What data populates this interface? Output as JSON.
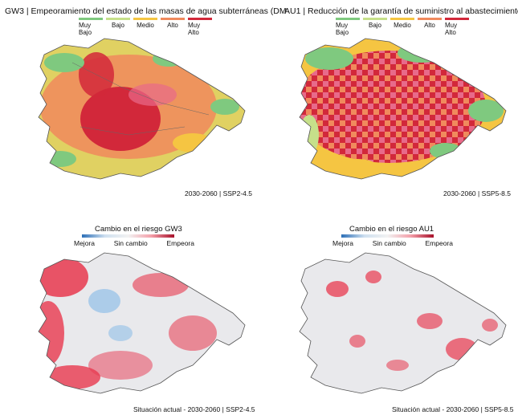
{
  "panels": [
    {
      "id": "gw3",
      "title_code": "GW3",
      "title_sep": "|",
      "title_text": "Empeoramiento del estado de las masas de agua subterráneas (DM",
      "legend": [
        "Muy Bajo",
        "Bajo",
        "Medio",
        "Alto",
        "Muy Alto"
      ],
      "footer": "2030-2060 | SSP2-4.5"
    },
    {
      "id": "au1",
      "title_code": "AU1",
      "title_sep": "|",
      "title_text": "Reducción de la garantía de suministro al abastecimiento",
      "legend": [
        "Muy Bajo",
        "Bajo",
        "Medio",
        "Alto",
        "Muy Alto"
      ],
      "footer": "2030-2060 | SSP5-8.5"
    },
    {
      "id": "gw3-change",
      "title_text": "Cambio en el riesgo GW3",
      "legend": [
        "Mejora",
        "Sin cambio",
        "Empeora"
      ],
      "footer": "Situación actual - 2030-2060 | SSP2-4.5"
    },
    {
      "id": "au1-change",
      "title_text": "Cambio en el riesgo AU1",
      "legend": [
        "Mejora",
        "Sin cambio",
        "Empeora"
      ],
      "footer": "Situación actual - 2030-2060 | SSP5-8.5"
    }
  ],
  "colors": {
    "muy_bajo": "#7fc97f",
    "bajo": "#c6e08a",
    "medio": "#f5c542",
    "alto": "#f08a5d",
    "muy_alto": "#d2283a",
    "mejora": "#2c6fb7",
    "sin_cambio": "#e9e9ec",
    "empeora": "#e8384f"
  }
}
